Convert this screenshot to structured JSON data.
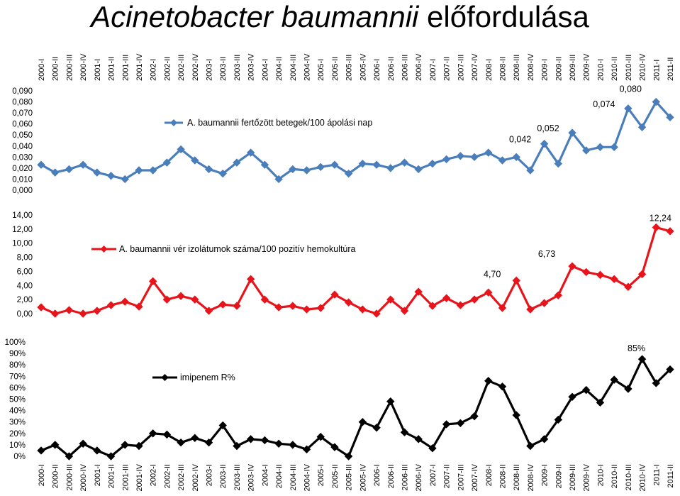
{
  "title": {
    "italic_part": "Acinetobacter baumannii",
    "normal_part": " előfordulása"
  },
  "categories": [
    "2000-I",
    "2000-II",
    "2000-III",
    "2000-IV",
    "2001-I",
    "2001-II",
    "2001-III",
    "2001-IV",
    "2002-I",
    "2002-II",
    "2002-III",
    "2002-IV",
    "2003-I",
    "2003-II",
    "2003-III",
    "2003-IV",
    "2004-I",
    "2004-II",
    "2004-III",
    "2004-IV",
    "2005-I",
    "2005-II",
    "2005-III",
    "2005-IV",
    "2006-I",
    "2006-II",
    "2006-III",
    "2006-IV",
    "2007-I",
    "2007-II",
    "2007-III",
    "2007-IV",
    "2008-I",
    "2008-II",
    "2008-III",
    "2008-IV",
    "2009-I",
    "2009-II",
    "2009-III",
    "2009-IV",
    "2010-I",
    "2010-II",
    "2010-III",
    "2010-IV",
    "2011-I",
    "2011-II"
  ],
  "chart_data": [
    {
      "type": "line",
      "series": [
        {
          "name": "A. baumannii fertőzött betegek/100 ápolási nap",
          "color": "#4a7ebb",
          "values": [
            0.023,
            0.016,
            0.019,
            0.023,
            0.016,
            0.013,
            0.01,
            0.018,
            0.018,
            0.025,
            0.037,
            0.027,
            0.019,
            0.015,
            0.025,
            0.034,
            0.023,
            0.01,
            0.019,
            0.018,
            0.021,
            0.023,
            0.015,
            0.024,
            0.023,
            0.02,
            0.025,
            0.019,
            0.024,
            0.028,
            0.031,
            0.03,
            0.034,
            0.027,
            0.03,
            0.018,
            0.042,
            0.024,
            0.052,
            0.036,
            0.039,
            0.039,
            0.074,
            0.057,
            0.08,
            0.066
          ]
        }
      ],
      "ylim": [
        0,
        0.09
      ],
      "yticks": [
        "0,000",
        "0,010",
        "0,020",
        "0,030",
        "0,040",
        "0,050",
        "0,060",
        "0,070",
        "0,080",
        "0,090"
      ],
      "annotations": [
        {
          "index": 36,
          "text": "0,042"
        },
        {
          "index": 38,
          "text": "0,052"
        },
        {
          "index": 42,
          "text": "0,074"
        },
        {
          "index": 44,
          "text": "0,080"
        }
      ]
    },
    {
      "type": "line",
      "series": [
        {
          "name": "A. baumannii vér izolátumok száma/100 pozitív hemokultúra",
          "color": "#e8141b",
          "values": [
            0.9,
            0.0,
            0.5,
            0.0,
            0.4,
            1.2,
            1.7,
            1.0,
            4.6,
            2.0,
            2.5,
            2.0,
            0.4,
            1.3,
            1.1,
            4.9,
            2.0,
            0.9,
            1.1,
            0.6,
            0.8,
            2.7,
            1.6,
            0.6,
            0.0,
            2.0,
            0.4,
            3.1,
            1.1,
            2.2,
            1.2,
            2.0,
            3.0,
            0.8,
            4.7,
            0.6,
            1.5,
            2.6,
            6.73,
            5.9,
            5.5,
            4.9,
            3.8,
            5.6,
            12.24,
            11.7
          ]
        }
      ],
      "ylim": [
        0,
        14
      ],
      "yticks": [
        "0,00",
        "2,00",
        "4,00",
        "6,00",
        "8,00",
        "10,00",
        "12,00",
        "14,00"
      ],
      "annotations": [
        {
          "index": 34,
          "text": "4,70"
        },
        {
          "index": 38,
          "text": "6,73"
        },
        {
          "index": 44,
          "text": "12,24"
        }
      ]
    },
    {
      "type": "line",
      "series": [
        {
          "name": "imipenem R%",
          "color": "#000000",
          "values": [
            5,
            10,
            0,
            11,
            5,
            0,
            10,
            9,
            20,
            19,
            12,
            16,
            12,
            27,
            9,
            15,
            14,
            11,
            10,
            6,
            17,
            8,
            0,
            30,
            25,
            48,
            21,
            15,
            7,
            28,
            29,
            35,
            66,
            61,
            36,
            9,
            15,
            32,
            52,
            58,
            47,
            67,
            59,
            85,
            64,
            76
          ]
        }
      ],
      "ylim": [
        0,
        100
      ],
      "yticks": [
        "0%",
        "10%",
        "20%",
        "30%",
        "40%",
        "50%",
        "60%",
        "70%",
        "80%",
        "90%",
        "100%"
      ],
      "annotations": [
        {
          "index": 43,
          "text": "85%"
        }
      ]
    }
  ]
}
